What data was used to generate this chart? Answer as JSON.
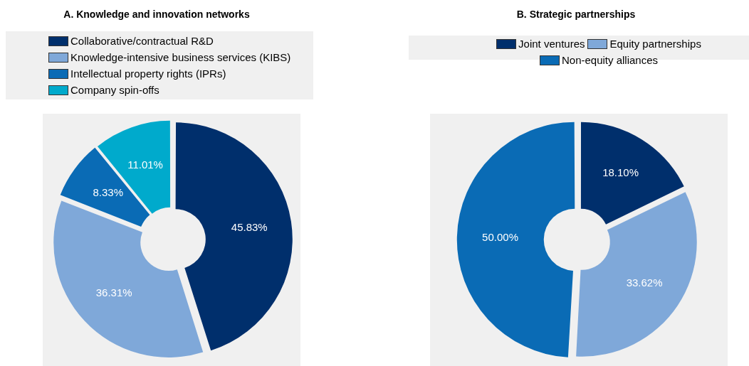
{
  "chart_data": [
    {
      "type": "donut",
      "title": "A. Knowledge and innovation networks",
      "categories": [
        "Collaborative/contractual R&D",
        "Knowledge-intensive business services (KIBS)",
        "Intellectual property rights (IPRs)",
        "Company spin-offs"
      ],
      "values": [
        45.83,
        36.31,
        8.33,
        11.01
      ],
      "value_labels": [
        "45.83%",
        "36.31%",
        "8.33%",
        "11.01%"
      ],
      "colors": [
        "#002f6c",
        "#7fa8d9",
        "#0a6bb5",
        "#00aacc"
      ],
      "legend": "top"
    },
    {
      "type": "donut",
      "title": "B. Strategic partnerships",
      "categories": [
        "Joint ventures",
        "Equity partnerships",
        "Non-equity alliances"
      ],
      "values": [
        18.1,
        33.62,
        50.0
      ],
      "value_labels": [
        "18.10%",
        "33.62%",
        "50.00%"
      ],
      "colors": [
        "#002f6c",
        "#7fa8d9",
        "#0a6bb5"
      ],
      "legend": "top"
    }
  ]
}
